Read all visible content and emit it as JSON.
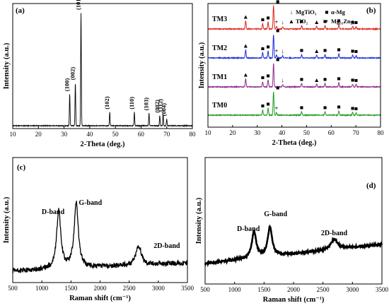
{
  "chart_data": [
    {
      "panel": "(a)",
      "type": "line",
      "xlabel": "2-Theta (deg.)",
      "ylabel": "Intensity (a.u.)",
      "xlim": [
        10,
        80
      ],
      "xticks": [
        10,
        20,
        30,
        40,
        50,
        60,
        70,
        80
      ],
      "color": "#000000",
      "peaks": [
        {
          "x": 32.2,
          "h": 0.28,
          "label": "(100)"
        },
        {
          "x": 34.4,
          "h": 0.38,
          "label": "(002)"
        },
        {
          "x": 36.6,
          "h": 1.0,
          "label": "(101)"
        },
        {
          "x": 47.8,
          "h": 0.12,
          "label": "(102)"
        },
        {
          "x": 57.4,
          "h": 0.12,
          "label": "(110)"
        },
        {
          "x": 63.1,
          "h": 0.11,
          "label": "(103)"
        },
        {
          "x": 67.3,
          "h": 0.09,
          "label": "(002)"
        },
        {
          "x": 68.6,
          "h": 0.1,
          "label": "(112)"
        },
        {
          "x": 70.0,
          "h": 0.06,
          "label": "(004)"
        }
      ]
    },
    {
      "panel": "(b)",
      "type": "line",
      "xlabel": "2-Theta (deg.)",
      "ylabel": "Intensity (a.u.)",
      "xlim": [
        10,
        80
      ],
      "xticks": [
        10,
        20,
        30,
        40,
        50,
        60,
        70,
        80
      ],
      "series": [
        {
          "name": "TM3",
          "color": "#e0241b"
        },
        {
          "name": "TM2",
          "color": "#1a2be0"
        },
        {
          "name": "TM1",
          "color": "#8e2a8e"
        },
        {
          "name": "TM0",
          "color": "#1f9a1f"
        }
      ],
      "legend": [
        {
          "symbol": "↓",
          "text": "MgTiO₃"
        },
        {
          "symbol": "■",
          "text": "α-Mg"
        },
        {
          "symbol": "▲",
          "text": "TiO₂"
        },
        {
          "symbol": "+",
          "text": "Mg₅₁Zn₂₀"
        }
      ],
      "peaks": [
        {
          "x": 25.3,
          "h": 0.35,
          "phase": "TiO2",
          "in": [
            "TM3",
            "TM2",
            "TM1"
          ]
        },
        {
          "x": 32.2,
          "h": 0.22,
          "phase": "alpha-Mg",
          "in": [
            "TM3",
            "TM2",
            "TM1",
            "TM0"
          ]
        },
        {
          "x": 34.4,
          "h": 0.3,
          "phase": "alpha-Mg",
          "in": [
            "TM3",
            "TM2",
            "TM1",
            "TM0"
          ]
        },
        {
          "x": 36.6,
          "h": 1.0,
          "phase": "alpha-Mg",
          "in": [
            "TM3",
            "TM2",
            "TM1",
            "TM0"
          ]
        },
        {
          "x": 37.8,
          "h": 0.12,
          "phase": "Mg51Zn20",
          "in": [
            "TM3",
            "TM2",
            "TM0"
          ]
        },
        {
          "x": 40.3,
          "h": 0.1,
          "phase": "MgTiO3",
          "in": [
            "TM3",
            "TM2",
            "TM1"
          ]
        },
        {
          "x": 48.0,
          "h": 0.15,
          "phase": "alpha-Mg",
          "in": [
            "TM3",
            "TM2",
            "TM1",
            "TM0"
          ]
        },
        {
          "x": 54.1,
          "h": 0.12,
          "phase": "TiO2",
          "in": [
            "TM3",
            "TM2",
            "TM1"
          ]
        },
        {
          "x": 57.5,
          "h": 0.15,
          "phase": "alpha-Mg",
          "in": [
            "TM3",
            "TM2",
            "TM1",
            "TM0"
          ]
        },
        {
          "x": 63.1,
          "h": 0.18,
          "phase": "alpha-Mg",
          "in": [
            "TM3",
            "TM2",
            "TM1",
            "TM0"
          ]
        },
        {
          "x": 68.7,
          "h": 0.12,
          "phase": "alpha-Mg",
          "in": [
            "TM3",
            "TM2",
            "TM1",
            "TM0"
          ]
        },
        {
          "x": 70.1,
          "h": 0.1,
          "phase": "alpha-Mg",
          "in": [
            "TM3",
            "TM2",
            "TM1",
            "TM0"
          ]
        }
      ]
    },
    {
      "panel": "(c)",
      "type": "line",
      "xlabel": "Raman shift (cm⁻¹)",
      "ylabel": "Intensity (a.u.)",
      "xlim": [
        500,
        3500
      ],
      "xticks": [
        500,
        1000,
        1500,
        2000,
        2500,
        3000,
        3500
      ],
      "color": "#000000",
      "bands": [
        {
          "x": 1290,
          "h": 0.75,
          "label": "D-band"
        },
        {
          "x": 1590,
          "h": 0.85,
          "label": "G-band"
        },
        {
          "x": 2660,
          "h": 0.25,
          "label": "2D-band"
        }
      ]
    },
    {
      "panel": "(d)",
      "type": "line",
      "xlabel": "Raman shift (cm⁻¹)",
      "ylabel": "Intensity (a.u.)",
      "xlim": [
        500,
        3500
      ],
      "xticks": [
        500,
        1000,
        1500,
        2000,
        2500,
        3000,
        3500
      ],
      "color": "#000000",
      "bands": [
        {
          "x": 1330,
          "h": 0.45,
          "label": "D-band"
        },
        {
          "x": 1600,
          "h": 0.5,
          "label": "G-band"
        },
        {
          "x": 2690,
          "h": 0.18,
          "label": "2D-band"
        }
      ]
    }
  ]
}
